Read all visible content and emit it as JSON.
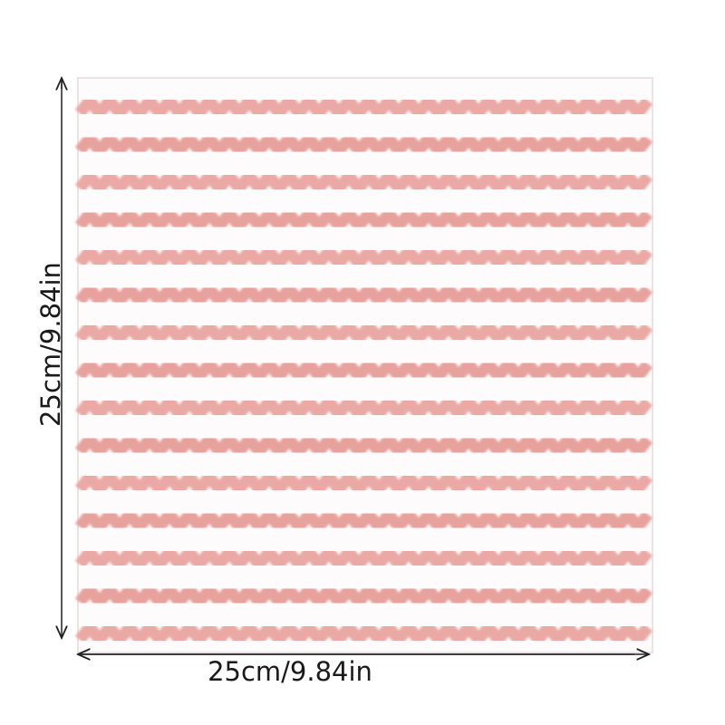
{
  "labels": {
    "height": "25cm/9.84in",
    "width": "25cm/9.84in"
  }
}
